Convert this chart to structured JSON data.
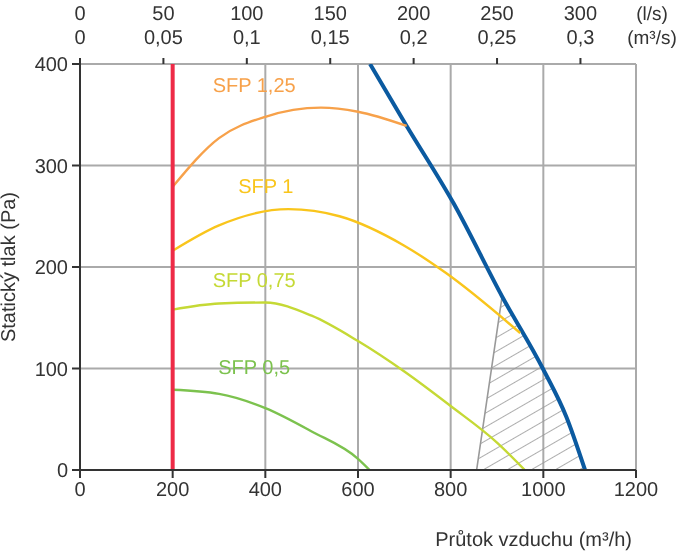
{
  "chart_data": {
    "type": "line",
    "xlabel": "Průtok vzduchu (m³/h)",
    "ylabel": "Statický tlak (Pa)",
    "x2label": "(l/s)",
    "annotations": [
      "0",
      "0,05",
      "0,1",
      "0,15",
      "0,2",
      "0,25",
      "0,3",
      "(m³/s)"
    ],
    "xlim": [
      0,
      1200
    ],
    "xticks": [
      0,
      200,
      400,
      600,
      800,
      1000,
      1200
    ],
    "x2lim": [
      0,
      333.3
    ],
    "x2ticks": [
      0,
      50,
      100,
      150,
      200,
      250,
      300
    ],
    "ylim": [
      0,
      400
    ],
    "yticks": [
      0,
      100,
      200,
      300,
      400
    ],
    "grid": true,
    "marker": "none",
    "ref_lines": [
      {
        "axis": "x",
        "value": 200,
        "color": "#ee2b47"
      }
    ],
    "series": [
      {
        "type": "area",
        "color": "#999999",
        "x": [
          856,
          911,
          1000,
          1050,
          1090
        ],
        "values": [
          0,
          171,
          99,
          52,
          0
        ]
      },
      {
        "color": "#0b5aa0",
        "x": [
          626,
          705,
          806,
          911,
          1000,
          1050,
          1090
        ],
        "values": [
          400,
          339,
          263,
          171,
          99,
          52,
          0
        ]
      },
      {
        "name": "SFP 1,25",
        "color": "#f7a14a",
        "x": [
          200,
          300,
          400,
          520,
          600,
          705
        ],
        "values": [
          279,
          327,
          348,
          357,
          353,
          339
        ]
      },
      {
        "name": "SFP 1",
        "color": "#f9c51c",
        "x": [
          200,
          300,
          450,
          560,
          700,
          790,
          950
        ],
        "values": [
          216,
          241,
          257,
          250,
          221,
          194,
          135
        ]
      },
      {
        "name": "SFP 0,75",
        "color": "#c5d935",
        "x": [
          200,
          300,
          400,
          500,
          600,
          700,
          800,
          900,
          960
        ],
        "values": [
          158,
          164,
          165,
          152,
          127,
          97,
          63,
          27,
          0
        ]
      },
      {
        "name": "SFP 0,5",
        "color": "#7cc24e",
        "x": [
          200,
          300,
          400,
          500,
          600,
          625
        ],
        "values": [
          79,
          75,
          61,
          38,
          11,
          0
        ]
      }
    ]
  }
}
